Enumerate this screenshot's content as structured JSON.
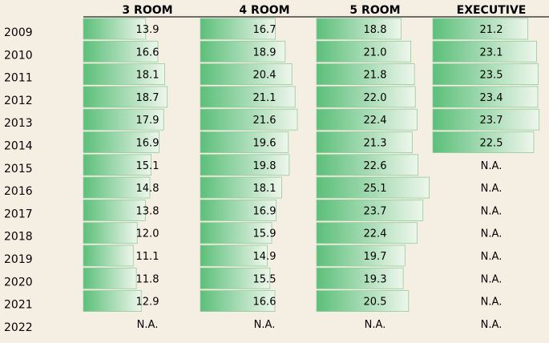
{
  "chart_data": {
    "type": "table",
    "columns": [
      "3 ROOM",
      "4 ROOM",
      "5 ROOM",
      "EXECUTIVE"
    ],
    "rows": [
      "2009",
      "2010",
      "2011",
      "2012",
      "2013",
      "2014",
      "2015",
      "2016",
      "2017",
      "2018",
      "2019",
      "2020",
      "2021",
      "2022"
    ],
    "values": [
      [
        13.9,
        16.7,
        18.8,
        21.2
      ],
      [
        16.6,
        18.9,
        21.0,
        23.1
      ],
      [
        18.1,
        20.4,
        21.8,
        23.5
      ],
      [
        18.7,
        21.1,
        22.0,
        23.4
      ],
      [
        17.9,
        21.6,
        22.4,
        23.7
      ],
      [
        16.9,
        19.6,
        21.3,
        22.5
      ],
      [
        15.1,
        19.8,
        22.6,
        null
      ],
      [
        14.8,
        18.1,
        25.1,
        null
      ],
      [
        13.8,
        16.9,
        23.7,
        null
      ],
      [
        12.0,
        15.9,
        22.4,
        null
      ],
      [
        11.1,
        14.9,
        19.7,
        null
      ],
      [
        11.8,
        15.5,
        19.3,
        null
      ],
      [
        12.9,
        16.6,
        20.5,
        null
      ],
      [
        null,
        null,
        null,
        null
      ]
    ],
    "na_label": "N.A.",
    "bar_color_start": "#5cbf7a",
    "bar_color_end": "#eef6ec",
    "background": "#f5efe3"
  }
}
